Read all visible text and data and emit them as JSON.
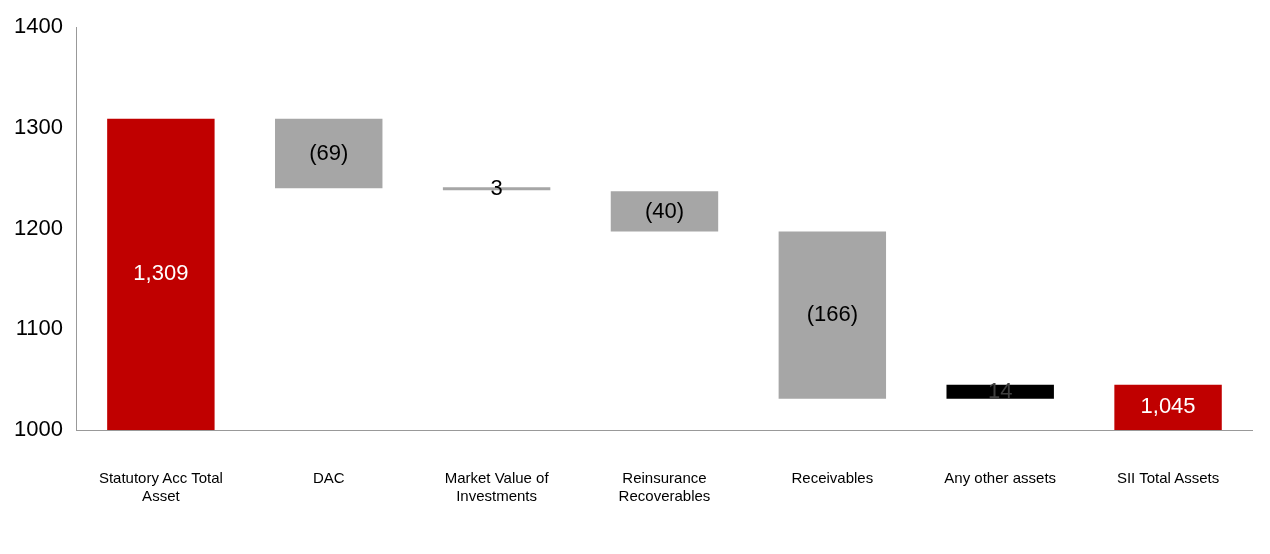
{
  "chart_data": {
    "type": "bar",
    "categories": [
      "Statutory Acc Total Asset",
      "DAC",
      "Market Value of Investments",
      "Reinsurance Recoverables",
      "Receivables",
      "Any other assets",
      "SII Total Assets"
    ],
    "base": [
      1000,
      1309,
      1238,
      1237,
      1197,
      1031,
      1000
    ],
    "values": [
      309,
      -69,
      3,
      -40,
      -166,
      14,
      45
    ],
    "colors": [
      "#c00000",
      "#a6a6a6",
      "#a6a6a6",
      "#a6a6a6",
      "#a6a6a6",
      "#000000",
      "#c00000"
    ],
    "value_labels": [
      "1,309",
      "(69)",
      "3",
      "(40)",
      "(166)",
      "14",
      "1,045"
    ],
    "ylim": [
      1000,
      1400
    ],
    "yticks": [
      1000,
      1100,
      1200,
      1300,
      1400
    ],
    "grid": false,
    "legend": false
  }
}
